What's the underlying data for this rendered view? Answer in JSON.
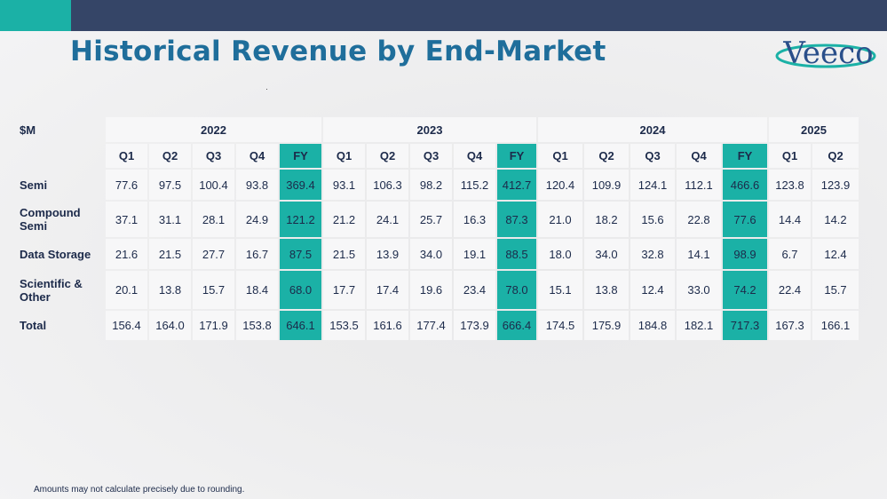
{
  "title": "Historical Revenue by End-Market",
  "logo": {
    "text": "Veeco"
  },
  "table": {
    "unit_label": "$M",
    "years": [
      {
        "label": "2022",
        "span": 5
      },
      {
        "label": "2023",
        "span": 5
      },
      {
        "label": "2024",
        "span": 5
      },
      {
        "label": "2025",
        "span": 2
      }
    ],
    "quarters": [
      "Q1",
      "Q2",
      "Q3",
      "Q4",
      "FY",
      "Q1",
      "Q2",
      "Q3",
      "Q4",
      "FY",
      "Q1",
      "Q2",
      "Q3",
      "Q4",
      "FY",
      "Q1",
      "Q2"
    ],
    "rows": [
      {
        "label": "Semi",
        "values": [
          "77.6",
          "97.5",
          "100.4",
          "93.8",
          "369.4",
          "93.1",
          "106.3",
          "98.2",
          "115.2",
          "412.7",
          "120.4",
          "109.9",
          "124.1",
          "112.1",
          "466.6",
          "123.8",
          "123.9"
        ]
      },
      {
        "label": "Compound Semi",
        "values": [
          "37.1",
          "31.1",
          "28.1",
          "24.9",
          "121.2",
          "21.2",
          "24.1",
          "25.7",
          "16.3",
          "87.3",
          "21.0",
          "18.2",
          "15.6",
          "22.8",
          "77.6",
          "14.4",
          "14.2"
        ]
      },
      {
        "label": "Data Storage",
        "values": [
          "21.6",
          "21.5",
          "27.7",
          "16.7",
          "87.5",
          "21.5",
          "13.9",
          "34.0",
          "19.1",
          "88.5",
          "18.0",
          "34.0",
          "32.8",
          "14.1",
          "98.9",
          "6.7",
          "12.4"
        ]
      },
      {
        "label": "Scientific & Other",
        "values": [
          "20.1",
          "13.8",
          "15.7",
          "18.4",
          "68.0",
          "17.7",
          "17.4",
          "19.6",
          "23.4",
          "78.0",
          "15.1",
          "13.8",
          "12.4",
          "33.0",
          "74.2",
          "22.4",
          "15.7"
        ]
      },
      {
        "label": "Total",
        "values": [
          "156.4",
          "164.0",
          "171.9",
          "153.8",
          "646.1",
          "153.5",
          "161.6",
          "177.4",
          "173.9",
          "666.4",
          "174.5",
          "175.9",
          "184.8",
          "182.1",
          "717.3",
          "167.3",
          "166.1"
        ]
      }
    ]
  },
  "footnote": "Amounts may not calculate precisely due to rounding.",
  "colors": {
    "teal": "#1bb1a6",
    "navy": "#354567",
    "title": "#1f6e9b"
  }
}
